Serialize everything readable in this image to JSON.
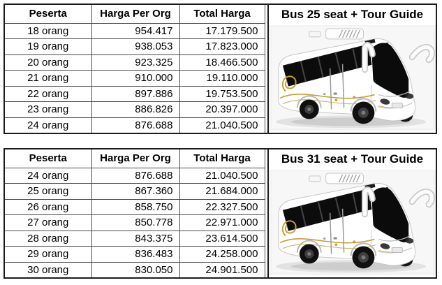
{
  "colors": {
    "outer_border": "#1c1c1c",
    "grid_line": "#4a4a4a",
    "bus_gold_accent": "#c2a035",
    "bus_window_black": "#0c0c0c",
    "photo_background": "#f3f3f3"
  },
  "tables": [
    {
      "title": "Bus 25 seat + Tour Guide",
      "image_icon": "bus-photo",
      "columns": [
        "Peserta",
        "Harga Per Org",
        "Total Harga"
      ],
      "rows": [
        [
          "18 orang",
          "954.417",
          "17.179.500"
        ],
        [
          "19 orang",
          "938.053",
          "17.823.000"
        ],
        [
          "20 orang",
          "923.325",
          "18.466.500"
        ],
        [
          "21 orang",
          "910.000",
          "19.110.000"
        ],
        [
          "22 orang",
          "897.886",
          "19.753.500"
        ],
        [
          "23 orang",
          "886.826",
          "20.397.000"
        ],
        [
          "24 orang",
          "876.688",
          "21.040.500"
        ]
      ]
    },
    {
      "title": "Bus 31 seat + Tour Guide",
      "image_icon": "bus-photo",
      "columns": [
        "Peserta",
        "Harga Per Org",
        "Total Harga"
      ],
      "rows": [
        [
          "24 orang",
          "876.688",
          "21.040.500"
        ],
        [
          "25 orang",
          "867.360",
          "21.684.000"
        ],
        [
          "26 orang",
          "858.750",
          "22.327.500"
        ],
        [
          "27 orang",
          "850.778",
          "22.971.000"
        ],
        [
          "28 orang",
          "843.375",
          "23.614.500"
        ],
        [
          "29 orang",
          "836.483",
          "24.258.000"
        ],
        [
          "30 orang",
          "830.050",
          "24.901.500"
        ]
      ]
    }
  ]
}
